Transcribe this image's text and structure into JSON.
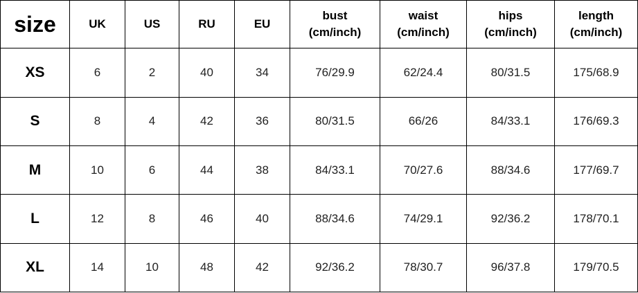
{
  "table": {
    "header": [
      [
        "size"
      ],
      [
        "UK"
      ],
      [
        "US"
      ],
      [
        "RU"
      ],
      [
        "EU"
      ],
      [
        "bust",
        "(cm/inch)"
      ],
      [
        "waist",
        "(cm/inch)"
      ],
      [
        "hips",
        "(cm/inch)"
      ],
      [
        "length",
        "(cm/inch)"
      ]
    ],
    "rows": [
      [
        "XS",
        "6",
        "2",
        "40",
        "34",
        "76/29.9",
        "62/24.4",
        "80/31.5",
        "175/68.9"
      ],
      [
        "S",
        "8",
        "4",
        "42",
        "36",
        "80/31.5",
        "66/26",
        "84/33.1",
        "176/69.3"
      ],
      [
        "M",
        "10",
        "6",
        "44",
        "38",
        "84/33.1",
        "70/27.6",
        "88/34.6",
        "177/69.7"
      ],
      [
        "L",
        "12",
        "8",
        "46",
        "40",
        "88/34.6",
        "74/29.1",
        "92/36.2",
        "178/70.1"
      ],
      [
        "XL",
        "14",
        "10",
        "48",
        "42",
        "92/36.2",
        "78/30.7",
        "96/37.8",
        "179/70.5"
      ]
    ]
  }
}
